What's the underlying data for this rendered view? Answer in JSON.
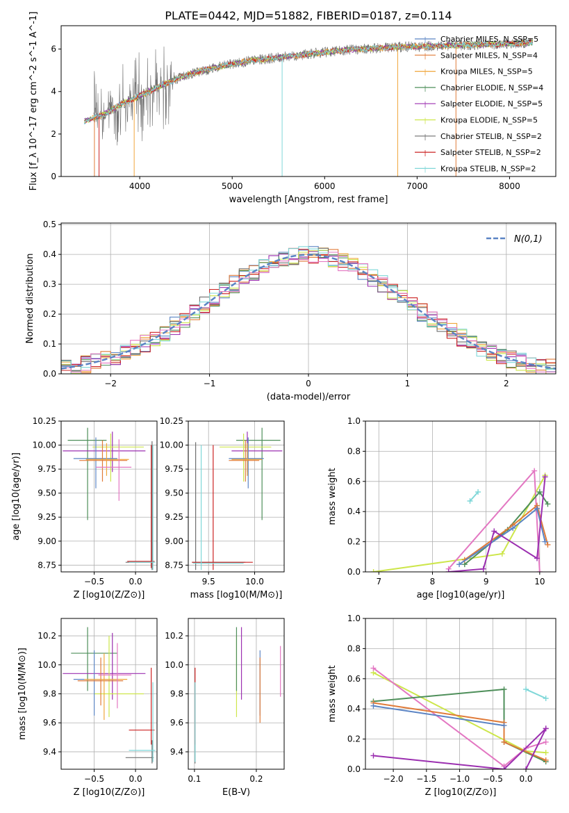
{
  "figure_title": "PLATE=0442, MJD=51882, FIBERID=0187, z=0.114",
  "colors": {
    "cm": "#5b84c4",
    "sm": "#e07b39",
    "km": "#f0a63a",
    "ce": "#4e8f5a",
    "se": "#9b2fb0",
    "ke": "#cde64b",
    "cs": "#6e6e6e",
    "ss": "#cc2222",
    "ks": "#7fd7d8",
    "gauss": "#5b84c4",
    "pink": "#e377c2",
    "grid": "#b0b0b0"
  },
  "chart_data": [
    {
      "id": "spectrum",
      "type": "line",
      "xlabel": "wavelength [Angstrom, rest frame]",
      "ylabel": "Flux [f_λ 10^-17 erg cm^-2 s^-1 A^-1]",
      "xlim": [
        3150,
        8500
      ],
      "ylim": [
        0,
        7.1
      ],
      "xticks": [
        4000,
        5000,
        6000,
        7000,
        8000
      ],
      "yticks": [
        0,
        2,
        4,
        6
      ],
      "legend_position": "upper right",
      "series": [
        {
          "key": "cm",
          "name": "Chabrier MILES, N_SSP=5",
          "color": "#5b84c4"
        },
        {
          "key": "sm",
          "name": "Salpeter MILES, N_SSP=4",
          "color": "#e07b39"
        },
        {
          "key": "km",
          "name": "Kroupa MILES, N_SSP=5",
          "color": "#f0a63a"
        },
        {
          "key": "ce",
          "name": "Chabrier ELODIE, N_SSP=4",
          "color": "#4e8f5a"
        },
        {
          "key": "se",
          "name": "Salpeter ELODIE, N_SSP=5",
          "color": "#9b2fb0"
        },
        {
          "key": "ke",
          "name": "Kroupa ELODIE, N_SSP=5",
          "color": "#cde64b"
        },
        {
          "key": "cs",
          "name": "Chabrier STELIB, N_SSP=2",
          "color": "#6e6e6e"
        },
        {
          "key": "ss",
          "name": "Salpeter STELIB, N_SSP=2",
          "color": "#cc2222"
        },
        {
          "key": "ks",
          "name": "Kroupa STELIB, N_SSP=2",
          "color": "#7fd7d8"
        }
      ],
      "continuum": {
        "x": [
          3400,
          3600,
          3800,
          4000,
          4200,
          4400,
          4600,
          4800,
          5000,
          5200,
          5400,
          5600,
          5800,
          6000,
          6200,
          6400,
          6600,
          6800,
          7000,
          7200,
          7400,
          7600,
          7800,
          8000,
          8200,
          8250
        ],
        "y": [
          2.6,
          2.9,
          3.4,
          3.8,
          4.2,
          4.6,
          4.9,
          5.1,
          5.3,
          5.45,
          5.55,
          5.65,
          5.75,
          5.85,
          5.95,
          6.0,
          6.05,
          6.1,
          6.12,
          6.15,
          6.17,
          6.2,
          6.22,
          6.25,
          6.3,
          6.3
        ]
      },
      "data_wavelength_range": [
        3500,
        8250
      ],
      "model_wavelength_range": [
        3400,
        8250
      ]
    },
    {
      "id": "residuals",
      "type": "histogram",
      "xlabel": "(data-model)/error",
      "ylabel": "Normed distribution",
      "xlim": [
        -2.5,
        2.5
      ],
      "ylim": [
        0,
        0.505
      ],
      "xticks": [
        -2,
        -1,
        0,
        1,
        2
      ],
      "yticks": [
        0.0,
        0.1,
        0.2,
        0.3,
        0.4,
        0.5
      ],
      "legend": "N(0,1)",
      "legend_position": "upper right",
      "bins": [
        -2.5,
        2.5,
        50
      ],
      "series_keys": [
        "cm",
        "sm",
        "km",
        "ce",
        "se",
        "ke",
        "cs",
        "ss",
        "ks",
        "pink"
      ]
    },
    {
      "id": "age_vs_Z",
      "type": "errorbar",
      "xlabel": "Z [log10(Z/Z⊙)]",
      "ylabel": "age  [log10(age/yr)]",
      "xlim": [
        -0.9,
        0.26
      ],
      "ylim": [
        8.68,
        10.25
      ],
      "xticks": [
        -0.5,
        0.0
      ],
      "yticks": [
        8.75,
        9.0,
        9.25,
        9.5,
        9.75,
        10.0,
        10.25
      ],
      "points": [
        {
          "c": "ce",
          "x": -0.58,
          "y": 10.05,
          "xe": [
            -0.82,
            -0.35
          ],
          "ye": [
            9.22,
            10.18
          ]
        },
        {
          "c": "se",
          "x": -0.28,
          "y": 9.94,
          "xe": [
            -0.88,
            0.12
          ],
          "ye": [
            9.72,
            10.14
          ]
        },
        {
          "c": "ke",
          "x": -0.3,
          "y": 9.98,
          "xe": [
            -0.52,
            0.1
          ],
          "ye": [
            9.62,
            10.12
          ]
        },
        {
          "c": "cm",
          "x": -0.48,
          "y": 9.86,
          "xe": [
            -0.75,
            -0.22
          ],
          "ye": [
            9.55,
            10.08
          ]
        },
        {
          "c": "sm",
          "x": -0.4,
          "y": 9.84,
          "xe": [
            -0.68,
            -0.1
          ],
          "ye": [
            9.62,
            10.05
          ]
        },
        {
          "c": "km",
          "x": -0.35,
          "y": 9.85,
          "xe": [
            -0.6,
            -0.08
          ],
          "ye": [
            9.68,
            10.02
          ]
        },
        {
          "c": "pink",
          "x": -0.2,
          "y": 9.77,
          "xe": [
            -0.48,
            -0.05
          ],
          "ye": [
            9.42,
            10.06
          ]
        },
        {
          "c": "cs",
          "x": 0.2,
          "y": 8.78,
          "xe": [
            -0.12,
            0.22
          ],
          "ye": [
            8.7,
            10.04
          ]
        },
        {
          "c": "ss",
          "x": 0.19,
          "y": 8.79,
          "xe": [
            -0.1,
            0.23
          ],
          "ye": [
            8.72,
            10.0
          ]
        },
        {
          "c": "ks",
          "x": 0.21,
          "y": 8.78,
          "xe": [
            -0.08,
            0.24
          ],
          "ye": [
            8.7,
            10.0
          ]
        }
      ]
    },
    {
      "id": "age_vs_mass",
      "type": "errorbar",
      "xlabel": "mass [log10(M/M⊙)]",
      "ylabel": "",
      "xlim": [
        9.28,
        10.32
      ],
      "ylim": [
        8.68,
        10.25
      ],
      "xticks": [
        9.5,
        10.0
      ],
      "yticks": [
        8.75,
        9.0,
        9.25,
        9.5,
        9.75,
        10.0,
        10.25
      ],
      "points": [
        {
          "c": "ce",
          "x": 10.08,
          "y": 10.05,
          "xe": [
            9.8,
            10.28
          ],
          "ye": [
            9.22,
            10.18
          ]
        },
        {
          "c": "se",
          "x": 9.92,
          "y": 9.94,
          "xe": [
            9.75,
            10.3
          ],
          "ye": [
            9.72,
            10.14
          ]
        },
        {
          "c": "ke",
          "x": 9.88,
          "y": 9.98,
          "xe": [
            9.62,
            10.18
          ],
          "ye": [
            9.62,
            10.12
          ]
        },
        {
          "c": "cm",
          "x": 9.93,
          "y": 9.86,
          "xe": [
            9.72,
            10.1
          ],
          "ye": [
            9.55,
            10.08
          ]
        },
        {
          "c": "sm",
          "x": 9.9,
          "y": 9.84,
          "xe": [
            9.72,
            10.05
          ],
          "ye": [
            9.62,
            10.05
          ]
        },
        {
          "c": "km",
          "x": 9.92,
          "y": 9.85,
          "xe": [
            9.75,
            10.08
          ],
          "ye": [
            9.68,
            10.02
          ]
        },
        {
          "c": "cs",
          "x": 9.36,
          "y": 8.78,
          "xe": [
            9.32,
            9.9
          ],
          "ye": [
            8.7,
            10.03
          ]
        },
        {
          "c": "ss",
          "x": 9.55,
          "y": 8.78,
          "xe": [
            9.32,
            9.98
          ],
          "ye": [
            8.7,
            10.0
          ]
        },
        {
          "c": "ks",
          "x": 9.42,
          "y": 8.77,
          "xe": [
            9.33,
            9.88
          ],
          "ye": [
            8.7,
            10.0
          ]
        }
      ]
    },
    {
      "id": "weight_vs_age",
      "type": "line",
      "xlabel": "age  [log10(age/yr)]",
      "ylabel": "mass weight",
      "xlim": [
        6.75,
        10.3
      ],
      "ylim": [
        0,
        1.0
      ],
      "xticks": [
        7,
        8,
        9,
        10
      ],
      "yticks": [
        0.0,
        0.2,
        0.4,
        0.6,
        0.8,
        1.0
      ],
      "series": [
        {
          "c": "ks",
          "x": [
            8.7,
            8.85
          ],
          "y": [
            0.47,
            0.53
          ]
        },
        {
          "c": "ke",
          "x": [
            6.9,
            9.3,
            10.1
          ],
          "y": [
            0.0,
            0.12,
            0.64
          ]
        },
        {
          "c": "pink",
          "x": [
            8.3,
            9.9,
            10.0
          ],
          "y": [
            0.02,
            0.67,
            0.0
          ]
        },
        {
          "c": "ce",
          "x": [
            8.6,
            9.4,
            10.0,
            10.15
          ],
          "y": [
            0.05,
            0.28,
            0.53,
            0.45
          ]
        },
        {
          "c": "sm",
          "x": [
            8.6,
            9.5,
            9.95,
            10.15
          ],
          "y": [
            0.08,
            0.31,
            0.44,
            0.18
          ]
        },
        {
          "c": "cm",
          "x": [
            8.5,
            9.5,
            9.95,
            10.1
          ],
          "y": [
            0.05,
            0.29,
            0.42,
            0.2
          ]
        },
        {
          "c": "se",
          "x": [
            8.3,
            8.95,
            9.15,
            9.95,
            10.1
          ],
          "y": [
            0.0,
            0.02,
            0.27,
            0.09,
            0.63
          ]
        }
      ]
    },
    {
      "id": "mass_vs_Z",
      "type": "errorbar",
      "xlabel": "Z [log10(Z/Z⊙)]",
      "ylabel": "mass [log10(M/M⊙)]",
      "xlim": [
        -0.9,
        0.26
      ],
      "ylim": [
        9.28,
        10.32
      ],
      "xticks": [
        -0.5,
        0.0
      ],
      "yticks": [
        9.4,
        9.6,
        9.8,
        10.0,
        10.2
      ],
      "points": [
        {
          "c": "ce",
          "x": -0.58,
          "y": 10.08,
          "xe": [
            -0.78,
            -0.22
          ],
          "ye": [
            9.82,
            10.26
          ]
        },
        {
          "c": "se",
          "x": -0.28,
          "y": 9.94,
          "xe": [
            -0.88,
            0.12
          ],
          "ye": [
            9.76,
            10.22
          ]
        },
        {
          "c": "ke",
          "x": -0.32,
          "y": 9.8,
          "xe": [
            -0.5,
            0.1
          ],
          "ye": [
            9.64,
            10.2
          ]
        },
        {
          "c": "cm",
          "x": -0.5,
          "y": 9.9,
          "xe": [
            -0.75,
            -0.22
          ],
          "ye": [
            9.65,
            10.1
          ]
        },
        {
          "c": "sm",
          "x": -0.42,
          "y": 9.89,
          "xe": [
            -0.7,
            -0.15
          ],
          "ye": [
            9.72,
            10.05
          ]
        },
        {
          "c": "km",
          "x": -0.38,
          "y": 9.9,
          "xe": [
            -0.62,
            -0.1
          ],
          "ye": [
            9.62,
            10.08
          ]
        },
        {
          "c": "pink",
          "x": -0.22,
          "y": 9.93,
          "xe": [
            -0.45,
            -0.05
          ],
          "ye": [
            9.7,
            10.15
          ]
        },
        {
          "c": "cs",
          "x": 0.2,
          "y": 9.36,
          "xe": [
            -0.12,
            0.22
          ],
          "ye": [
            9.32,
            9.48
          ]
        },
        {
          "c": "ss",
          "x": 0.19,
          "y": 9.55,
          "xe": [
            -0.08,
            0.23
          ],
          "ye": [
            9.45,
            9.98
          ]
        },
        {
          "c": "ks",
          "x": 0.21,
          "y": 9.41,
          "xe": [
            -0.08,
            0.24
          ],
          "ye": [
            9.33,
            9.88
          ]
        }
      ]
    },
    {
      "id": "mass_vs_EBV",
      "type": "errorbar",
      "xlabel": "E(B-V)",
      "ylabel": "",
      "xlim": [
        0.09,
        0.245
      ],
      "ylim": [
        9.28,
        10.32
      ],
      "xticks": [
        0.1,
        0.2
      ],
      "yticks": [
        9.4,
        9.6,
        9.8,
        10.0,
        10.2
      ],
      "vlines": [
        {
          "c": "cs",
          "x": 0.101,
          "y": [
            9.32,
            9.48
          ]
        },
        {
          "c": "ss",
          "x": 0.101,
          "y": [
            9.45,
            9.98
          ]
        },
        {
          "c": "ks",
          "x": 0.101,
          "y": [
            9.33,
            9.88
          ]
        },
        {
          "c": "ke",
          "x": 0.168,
          "y": [
            9.64,
            10.2
          ]
        },
        {
          "c": "ce",
          "x": 0.168,
          "y": [
            9.82,
            10.26
          ]
        },
        {
          "c": "se",
          "x": 0.176,
          "y": [
            9.76,
            10.26
          ]
        },
        {
          "c": "cm",
          "x": 0.206,
          "y": [
            9.65,
            10.1
          ]
        },
        {
          "c": "sm",
          "x": 0.206,
          "y": [
            9.6,
            10.05
          ]
        },
        {
          "c": "pink",
          "x": 0.239,
          "y": [
            9.78,
            10.13
          ]
        }
      ]
    },
    {
      "id": "weight_vs_Z",
      "type": "line",
      "xlabel": "Z [log10(Z/Z⊙)]",
      "ylabel": "mass weight",
      "xlim": [
        -2.42,
        0.45
      ],
      "ylim": [
        0,
        1.0
      ],
      "xticks": [
        -2.0,
        -1.5,
        -1.0,
        -0.5,
        0.0
      ],
      "yticks": [
        0.0,
        0.2,
        0.4,
        0.6,
        0.8,
        1.0
      ],
      "series": [
        {
          "c": "ks",
          "x": [
            0.0,
            0.3
          ],
          "y": [
            0.53,
            0.47
          ]
        },
        {
          "c": "ke",
          "x": [
            -2.3,
            0.0,
            0.3
          ],
          "y": [
            0.64,
            0.12,
            0.11
          ]
        },
        {
          "c": "pink",
          "x": [
            -2.3,
            -0.33,
            0.0,
            0.3
          ],
          "y": [
            0.67,
            0.02,
            0.14,
            0.18
          ]
        },
        {
          "c": "ce",
          "x": [
            -2.3,
            -0.33,
            -0.33,
            0.3
          ],
          "y": [
            0.45,
            0.53,
            0.18,
            0.05
          ]
        },
        {
          "c": "sm",
          "x": [
            -2.3,
            -0.33,
            -0.33,
            0.3
          ],
          "y": [
            0.44,
            0.31,
            0.18,
            0.06
          ]
        },
        {
          "c": "cm",
          "x": [
            -2.3,
            -0.33
          ],
          "y": [
            0.42,
            0.29
          ]
        },
        {
          "c": "se",
          "x": [
            -2.3,
            -0.33,
            0.3,
            0.0,
            0.3
          ],
          "y": [
            0.09,
            0.0,
            0.27,
            0.0,
            0.27
          ]
        }
      ]
    }
  ]
}
